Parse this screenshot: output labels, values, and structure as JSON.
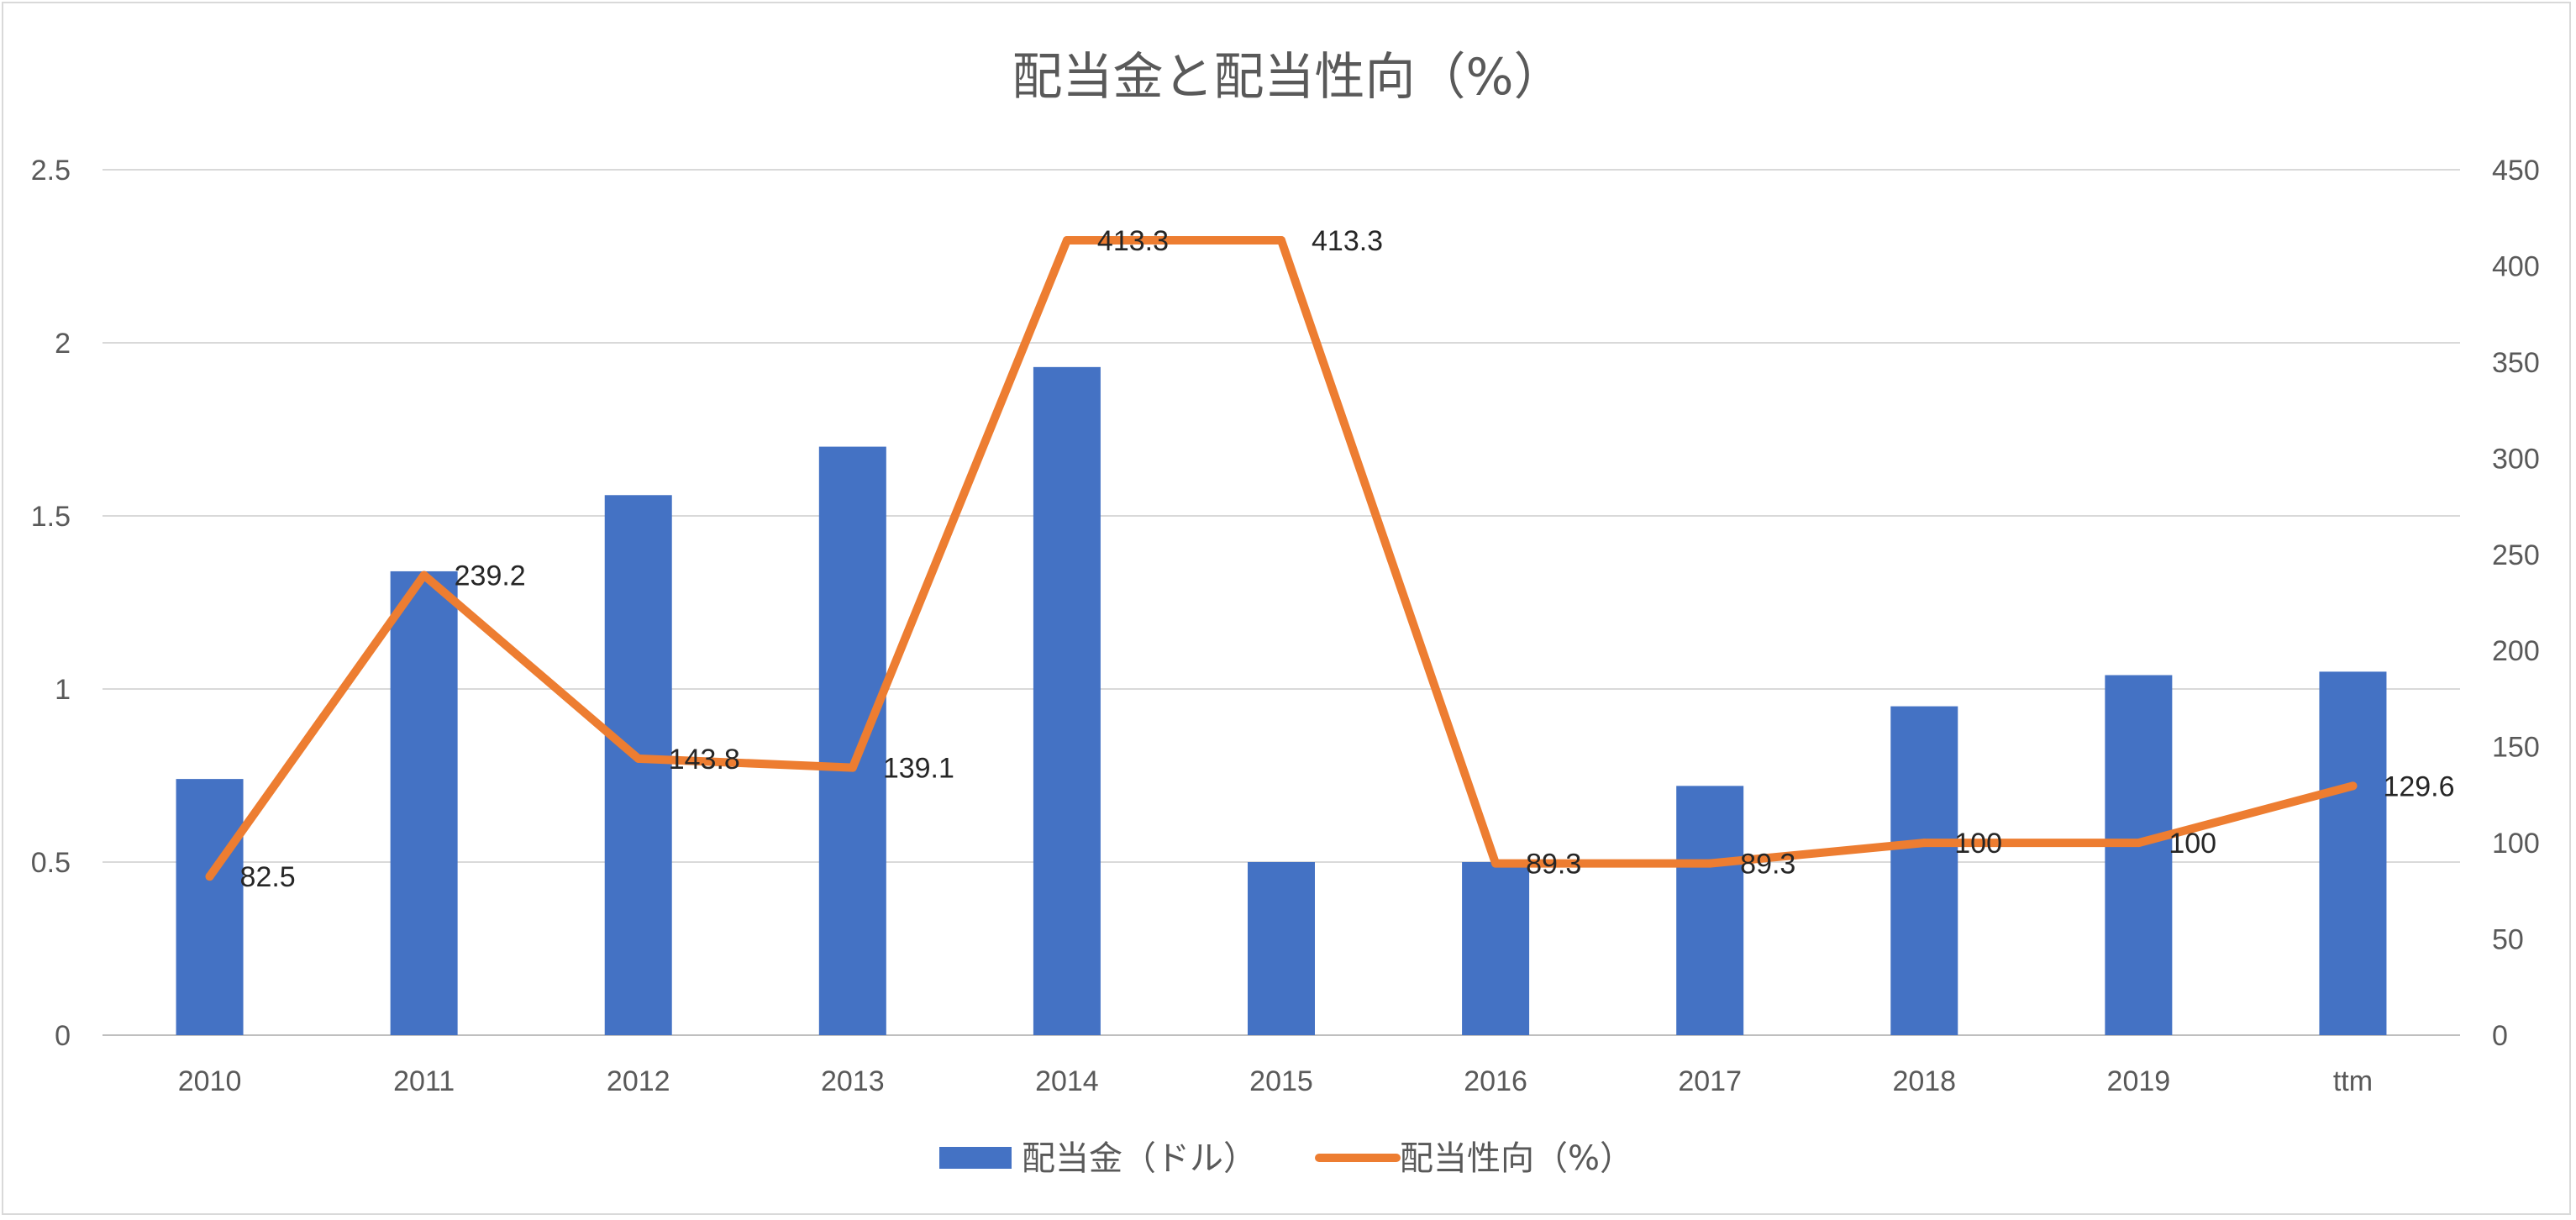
{
  "chart_data": {
    "type": "bar",
    "title": "配当金と配当性向（%）",
    "categories": [
      "2010",
      "2011",
      "2012",
      "2013",
      "2014",
      "2015",
      "2016",
      "2017",
      "2018",
      "2019",
      "ttm"
    ],
    "series": [
      {
        "name": "配当金（ドル）",
        "type": "bar",
        "axis": "left",
        "color": "#4472C4",
        "values": [
          0.74,
          1.34,
          1.56,
          1.7,
          1.93,
          0.5,
          0.5,
          0.72,
          0.95,
          1.04,
          1.05
        ]
      },
      {
        "name": "配当性向（%）",
        "type": "line",
        "axis": "right",
        "color": "#ED7D31",
        "values": [
          82.5,
          239.2,
          143.8,
          139.1,
          413.3,
          413.3,
          89.3,
          89.3,
          100,
          100,
          129.6
        ],
        "data_labels": [
          "82.5",
          "239.2",
          "143.8",
          "139.1",
          "413.3",
          "413.3",
          "89.3",
          "89.3",
          "100",
          "100",
          "129.6"
        ]
      }
    ],
    "y_left": {
      "min": 0,
      "max": 2.5,
      "ticks": [
        "0",
        "0.5",
        "1",
        "1.5",
        "2",
        "2.5"
      ]
    },
    "y_right": {
      "min": 0,
      "max": 450,
      "ticks": [
        "0",
        "50",
        "100",
        "150",
        "200",
        "250",
        "300",
        "350",
        "400",
        "450"
      ]
    },
    "grid": true,
    "legend_position": "bottom"
  }
}
